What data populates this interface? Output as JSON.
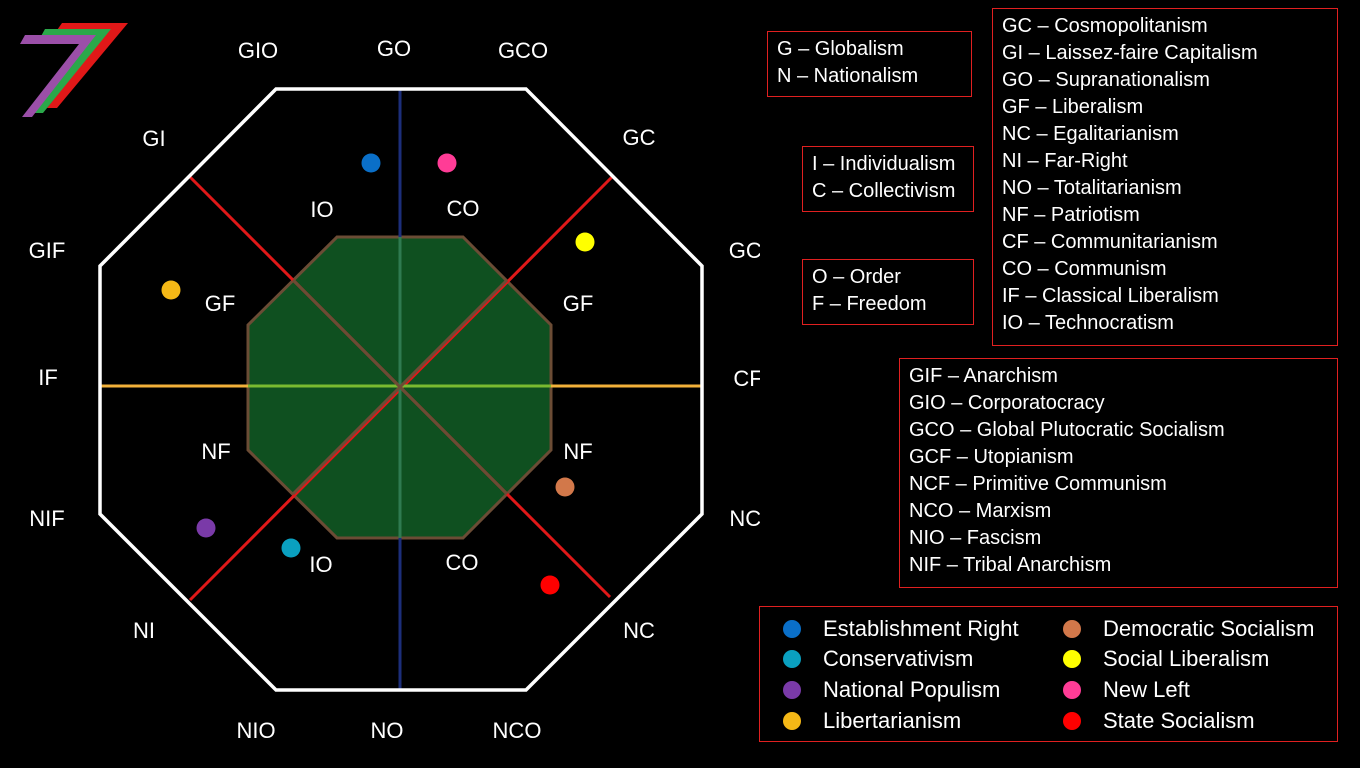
{
  "corner_labels": {
    "GO": "GO",
    "GIO": "GIO",
    "GCO": "GCO",
    "GI": "GI",
    "GC": "GC",
    "GIF": "GIF",
    "GCF": "GCF",
    "IF": "IF",
    "CF": "CF",
    "NIF": "NIF",
    "NCF": "NCF",
    "NI": "NI",
    "NC": "NC",
    "NIO": "NIO",
    "NO": "NO",
    "NCO": "NCO"
  },
  "inner_labels": {
    "io_top": "IO",
    "co_top": "CO",
    "gf_left": "GF",
    "gf_right": "GF",
    "nf_left": "NF",
    "nf_right": "NF",
    "io_bottom": "IO",
    "co_bottom": "CO"
  },
  "colors": {
    "octagon_border": "#ffffff",
    "inner_fill": "#0f5020",
    "inner_border": "#6b4c35",
    "vertical_axis": "#1c2e7a",
    "horizontal_axis": "#f2b13a",
    "diagonal_lines": "#e01818",
    "box_border": "#e02020"
  },
  "logo": {
    "icon": "stylized-seven-logo",
    "stripes": [
      "#9b4fa8",
      "#2aa84a",
      "#e01818"
    ]
  },
  "key_boxes": {
    "gn": [
      "G – Globalism",
      "N – Nationalism"
    ],
    "ic": [
      "I – Individualism",
      "C – Collectivism"
    ],
    "of": [
      "O – Order",
      "F – Freedom"
    ],
    "two_letter": [
      "GC – Cosmopolitanism",
      "GI – Laissez-faire Capitalism",
      "GO – Supranationalism",
      "GF – Liberalism",
      "NC – Egalitarianism",
      "NI – Far-Right",
      "NO – Totalitarianism",
      "NF – Patriotism",
      "CF – Communitarianism",
      "CO – Communism",
      "IF – Classical Liberalism",
      "IO – Technocratism"
    ],
    "three_letter": [
      "GIF – Anarchism",
      "GIO – Corporatocracy",
      "GCO – Global Plutocratic Socialism",
      "GCF – Utopianism",
      "NCF – Primitive Communism",
      "NCO – Marxism",
      "NIO – Fascism",
      "NIF – Tribal Anarchism"
    ]
  },
  "legend": [
    {
      "label": "Establishment Right",
      "color": "#0a6fc8"
    },
    {
      "label": "Conservativism",
      "color": "#0aa0c0"
    },
    {
      "label": "National Populism",
      "color": "#7a3aa8"
    },
    {
      "label": "Libertarianism",
      "color": "#f5b816"
    },
    {
      "label": "Democratic Socialism",
      "color": "#d2784a"
    },
    {
      "label": "Social Liberalism",
      "color": "#ffff00"
    },
    {
      "label": "New Left",
      "color": "#ff3c96"
    },
    {
      "label": "State Socialism",
      "color": "#ff0000"
    }
  ]
}
